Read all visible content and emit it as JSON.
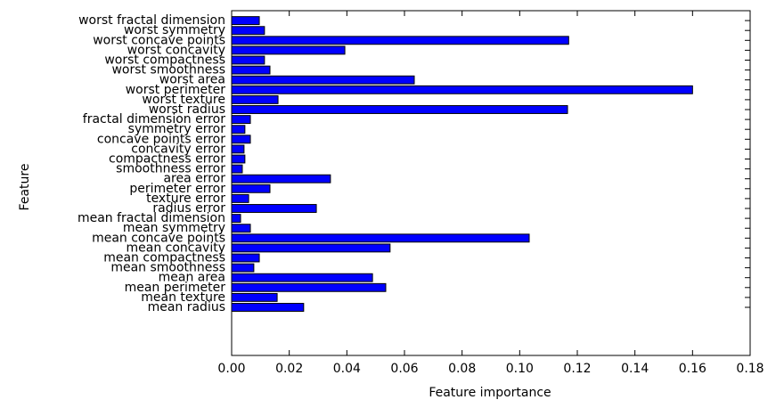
{
  "chart_data": {
    "type": "barh",
    "xlabel": "Feature importance",
    "ylabel": "Feature",
    "categories": [
      "mean radius",
      "mean texture",
      "mean perimeter",
      "mean area",
      "mean smoothness",
      "mean compactness",
      "mean concavity",
      "mean concave points",
      "mean symmetry",
      "mean fractal dimension",
      "radius error",
      "texture error",
      "perimeter error",
      "area error",
      "smoothness error",
      "compactness error",
      "concavity error",
      "concave points error",
      "symmetry error",
      "fractal dimension error",
      "worst radius",
      "worst texture",
      "worst perimeter",
      "worst area",
      "worst smoothness",
      "worst compactness",
      "worst concavity",
      "worst concave points",
      "worst symmetry",
      "worst fractal dimension"
    ],
    "values": [
      0.025,
      0.0158,
      0.0535,
      0.0489,
      0.0077,
      0.0096,
      0.055,
      0.1033,
      0.0065,
      0.0031,
      0.0294,
      0.0059,
      0.0133,
      0.0343,
      0.0037,
      0.0046,
      0.0043,
      0.0065,
      0.0046,
      0.0065,
      0.1166,
      0.0161,
      0.16,
      0.0634,
      0.0133,
      0.0114,
      0.0393,
      0.117,
      0.0114,
      0.0096
    ],
    "color": "#0000ff",
    "xlim": [
      0,
      0.18
    ],
    "xticks": [
      {
        "value": 0,
        "label": "0.00"
      },
      {
        "value": 0.02,
        "label": "0.02"
      },
      {
        "value": 0.04,
        "label": "0.04"
      },
      {
        "value": 0.06,
        "label": "0.06"
      },
      {
        "value": 0.08,
        "label": "0.08"
      },
      {
        "value": 0.1,
        "label": "0.10"
      },
      {
        "value": 0.12,
        "label": "0.12"
      },
      {
        "value": 0.14,
        "label": "0.14"
      },
      {
        "value": 0.16,
        "label": "0.16"
      },
      {
        "value": 0.18,
        "label": "0.18"
      }
    ]
  }
}
